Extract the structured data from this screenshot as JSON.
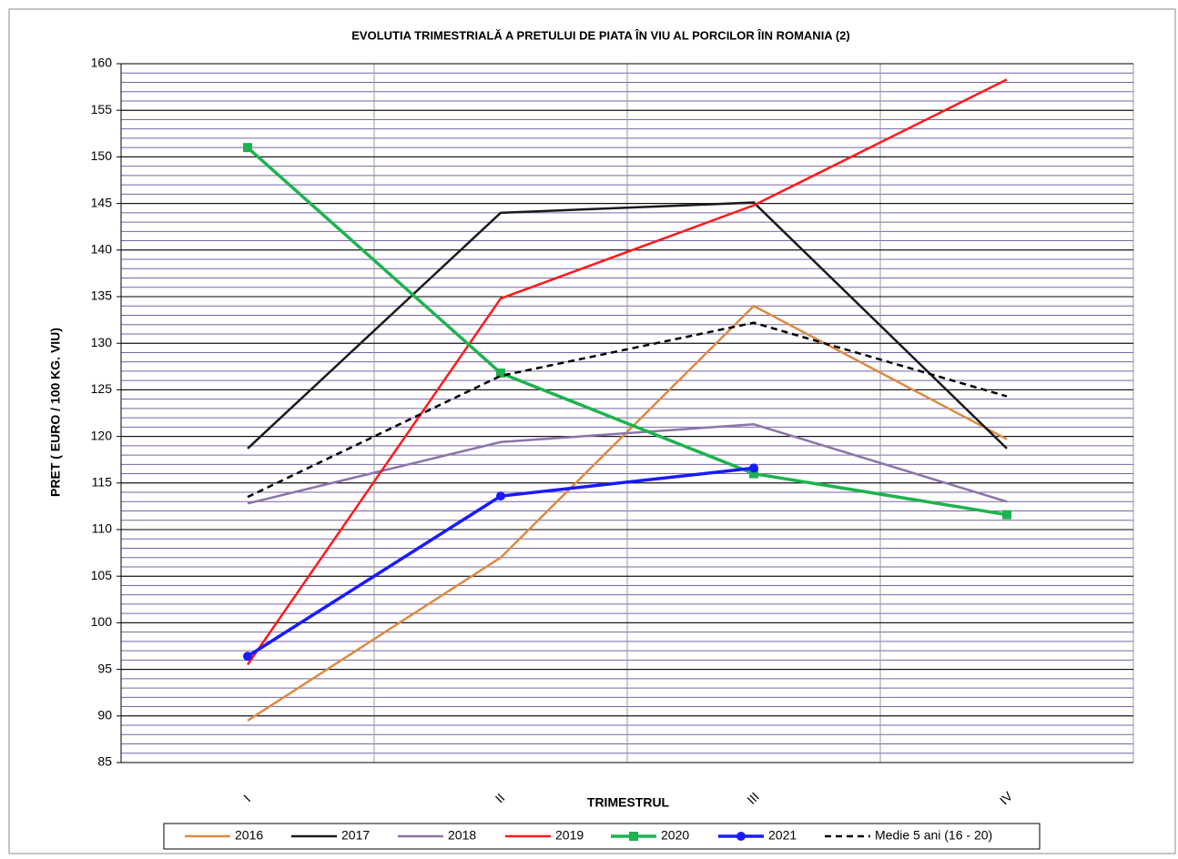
{
  "chart_data": {
    "type": "line",
    "title": "EVOLUTIA TRIMESTRIALĂ A PRETULUI  DE PIATA ÎN VIU AL PORCILOR ÎIN ROMANIA (2)",
    "x_label": "TRIMESTRUL",
    "y_label": "PRET ( EURO / 100 KG. VIU)",
    "categories": [
      "I",
      "II",
      "III",
      "IV"
    ],
    "ylim": [
      85,
      160
    ],
    "yticks": [
      85,
      90,
      95,
      100,
      105,
      110,
      115,
      120,
      125,
      130,
      135,
      140,
      145,
      150,
      155,
      160
    ],
    "grid": true,
    "minor_grid_step": 1,
    "legend": "bottom",
    "series": [
      {
        "name": "2016",
        "color": "#dd8a42",
        "values": [
          89.5,
          107,
          134,
          119.7
        ]
      },
      {
        "name": "2017",
        "color": "#1a1a1a",
        "values": [
          118.7,
          144,
          145.1,
          118.7
        ]
      },
      {
        "name": "2018",
        "color": "#8c74a8",
        "values": [
          112.8,
          119.4,
          121.3,
          113
        ]
      },
      {
        "name": "2019",
        "color": "#ff1a1a",
        "values": [
          95.5,
          134.8,
          144.8,
          158.3
        ]
      },
      {
        "name": "2020",
        "color": "#1db34e",
        "marker": "square",
        "values": [
          151,
          126.8,
          116,
          111.6
        ]
      },
      {
        "name": "2021",
        "color": "#1a1aff",
        "marker": "circle",
        "values": [
          96.4,
          113.6,
          116.6,
          null
        ]
      },
      {
        "name": "Medie 5 ani (16 - 20)",
        "color": "#000000",
        "dash": true,
        "values": [
          113.5,
          126.5,
          132.2,
          124.3
        ]
      }
    ]
  }
}
